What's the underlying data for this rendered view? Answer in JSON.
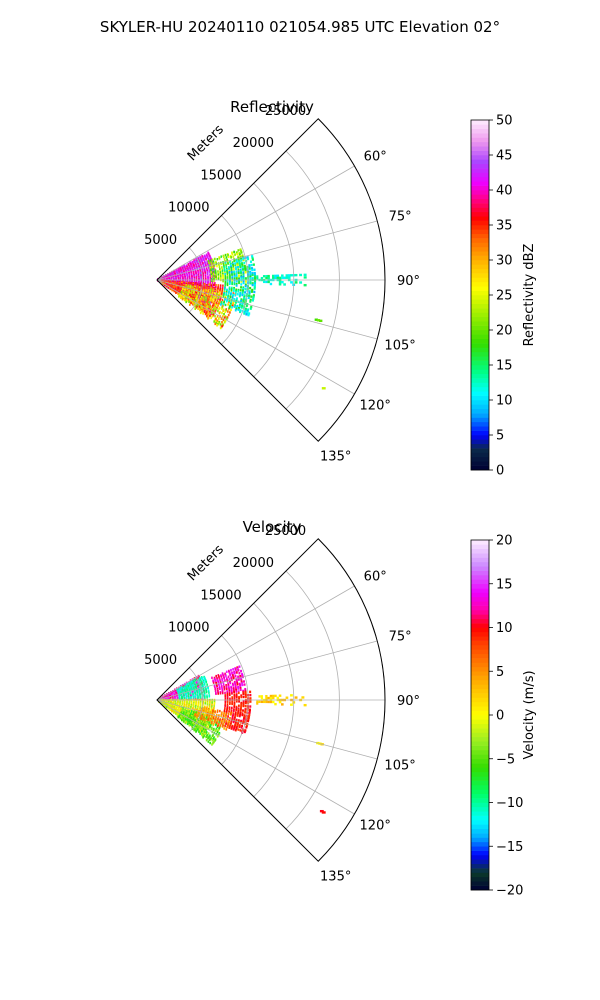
{
  "figure": {
    "suptitle": "SKYLER-HU  20240110  021054.985 UTC Elevation 02°"
  },
  "chart_data": [
    {
      "type": "polar-sector",
      "title": "Reflectivity",
      "radial_axis_label": "Meters",
      "radial_ticks": [
        5000,
        10000,
        15000,
        20000,
        25000
      ],
      "radial_tick_labels": [
        "5000",
        "10000",
        "15000",
        "20000",
        "25000"
      ],
      "angle_ticks": [
        60,
        75,
        90,
        105,
        120,
        135
      ],
      "angle_tick_labels": [
        "60°",
        "75°",
        "90°",
        "105°",
        "120°",
        "135°"
      ],
      "angle_range_deg": [
        45,
        135
      ],
      "range_max_m": 25000,
      "grid": true,
      "colorbar": {
        "label": "Reflectivity dBZ",
        "range": [
          0,
          50
        ],
        "ticks": [
          0,
          5,
          10,
          15,
          20,
          25,
          30,
          35,
          40,
          45,
          50
        ],
        "tick_labels": [
          "0",
          "5",
          "10",
          "15",
          "20",
          "25",
          "30",
          "35",
          "40",
          "45",
          "50"
        ],
        "stops": [
          {
            "v": 0,
            "c": "#000033"
          },
          {
            "v": 3,
            "c": "#0a2a4a"
          },
          {
            "v": 5,
            "c": "#0000ff"
          },
          {
            "v": 8,
            "c": "#00aaff"
          },
          {
            "v": 11,
            "c": "#00ffff"
          },
          {
            "v": 14,
            "c": "#00ff88"
          },
          {
            "v": 18,
            "c": "#33dd00"
          },
          {
            "v": 22,
            "c": "#99ee00"
          },
          {
            "v": 26,
            "c": "#ffff00"
          },
          {
            "v": 30,
            "c": "#ffb000"
          },
          {
            "v": 33,
            "c": "#ff6600"
          },
          {
            "v": 36,
            "c": "#ff0000"
          },
          {
            "v": 39,
            "c": "#ff0099"
          },
          {
            "v": 41,
            "c": "#ee00ff"
          },
          {
            "v": 44,
            "c": "#aa44ff"
          },
          {
            "v": 47,
            "c": "#ee99ee"
          },
          {
            "v": 50,
            "c": "#ffeeff"
          }
        ]
      },
      "echoes": [
        {
          "az": [
            62,
            118
          ],
          "r": [
            100,
            6500
          ],
          "v": [
            38,
            44
          ],
          "density": 0.8
        },
        {
          "az": [
            95,
            125
          ],
          "r": [
            500,
            7500
          ],
          "v": [
            30,
            39
          ],
          "density": 0.8
        },
        {
          "az": [
            100,
            128
          ],
          "r": [
            3000,
            9000
          ],
          "v": [
            20,
            35
          ],
          "density": 0.55
        },
        {
          "az": [
            70,
            92
          ],
          "r": [
            6000,
            10000
          ],
          "v": [
            16,
            26
          ],
          "density": 0.6
        },
        {
          "az": [
            76,
            112
          ],
          "r": [
            7500,
            11000
          ],
          "v": [
            8,
            18
          ],
          "density": 0.6
        },
        {
          "az": [
            88,
            93
          ],
          "r": [
            11000,
            16500
          ],
          "v": [
            10,
            16
          ],
          "density": 0.35
        },
        {
          "az": [
            104,
            106
          ],
          "r": [
            18000,
            18800
          ],
          "v": [
            18,
            22
          ],
          "density": 0.5
        },
        {
          "az": [
            123,
            125
          ],
          "r": [
            21800,
            22300
          ],
          "v": [
            18,
            24
          ],
          "density": 0.6
        }
      ]
    },
    {
      "type": "polar-sector",
      "title": "Velocity",
      "radial_axis_label": "Meters",
      "radial_ticks": [
        5000,
        10000,
        15000,
        20000,
        25000
      ],
      "radial_tick_labels": [
        "5000",
        "10000",
        "15000",
        "20000",
        "25000"
      ],
      "angle_ticks": [
        60,
        75,
        90,
        105,
        120,
        135
      ],
      "angle_tick_labels": [
        "60°",
        "75°",
        "90°",
        "105°",
        "120°",
        "135°"
      ],
      "angle_range_deg": [
        45,
        135
      ],
      "range_max_m": 25000,
      "grid": true,
      "colorbar": {
        "label": "Velocity (m/s)",
        "range": [
          -20,
          20
        ],
        "ticks": [
          -20,
          -15,
          -10,
          -5,
          0,
          5,
          10,
          15,
          20
        ],
        "tick_labels": [
          "−20",
          "−15",
          "−10",
          "−5",
          "0",
          "5",
          "10",
          "15",
          "20"
        ],
        "stops": [
          {
            "v": -20,
            "c": "#000033"
          },
          {
            "v": -18,
            "c": "#0a3a2a"
          },
          {
            "v": -16,
            "c": "#0000ff"
          },
          {
            "v": -14,
            "c": "#00aaff"
          },
          {
            "v": -12,
            "c": "#00ffff"
          },
          {
            "v": -9,
            "c": "#00ff66"
          },
          {
            "v": -6,
            "c": "#33dd00"
          },
          {
            "v": -3,
            "c": "#99ee22"
          },
          {
            "v": 0,
            "c": "#ffff00"
          },
          {
            "v": 4,
            "c": "#ffaa00"
          },
          {
            "v": 8,
            "c": "#ff4400"
          },
          {
            "v": 10,
            "c": "#ff0000"
          },
          {
            "v": 12,
            "c": "#ff00aa"
          },
          {
            "v": 14,
            "c": "#ee00ff"
          },
          {
            "v": 17,
            "c": "#cc88ff"
          },
          {
            "v": 20,
            "c": "#ffeeff"
          }
        ]
      },
      "echoes": [
        {
          "az": [
            60,
            90
          ],
          "r": [
            500,
            5500
          ],
          "v": [
            10,
            16
          ],
          "density": 0.75
        },
        {
          "az": [
            62,
            88
          ],
          "r": [
            2500,
            6000
          ],
          "v": [
            -12,
            -9
          ],
          "density": 0.65
        },
        {
          "az": [
            90,
            128
          ],
          "r": [
            300,
            6500
          ],
          "v": [
            -4,
            3
          ],
          "density": 0.8
        },
        {
          "az": [
            108,
            130
          ],
          "r": [
            3000,
            8000
          ],
          "v": [
            -8,
            -2
          ],
          "density": 0.6
        },
        {
          "az": [
            68,
            85
          ],
          "r": [
            6500,
            10000
          ],
          "v": [
            10,
            15
          ],
          "density": 0.7
        },
        {
          "az": [
            85,
            112
          ],
          "r": [
            7500,
            10500
          ],
          "v": [
            8,
            11
          ],
          "density": 0.7
        },
        {
          "az": [
            100,
            114
          ],
          "r": [
            4500,
            8500
          ],
          "v": [
            3,
            8
          ],
          "density": 0.5
        },
        {
          "az": [
            88,
            93
          ],
          "r": [
            11000,
            16500
          ],
          "v": [
            0,
            4
          ],
          "density": 0.35
        },
        {
          "az": [
            104,
            106
          ],
          "r": [
            18000,
            18800
          ],
          "v": [
            0,
            2
          ],
          "density": 0.5
        },
        {
          "az": [
            123,
            125
          ],
          "r": [
            21800,
            22300
          ],
          "v": [
            9,
            11
          ],
          "density": 0.6
        }
      ]
    }
  ]
}
